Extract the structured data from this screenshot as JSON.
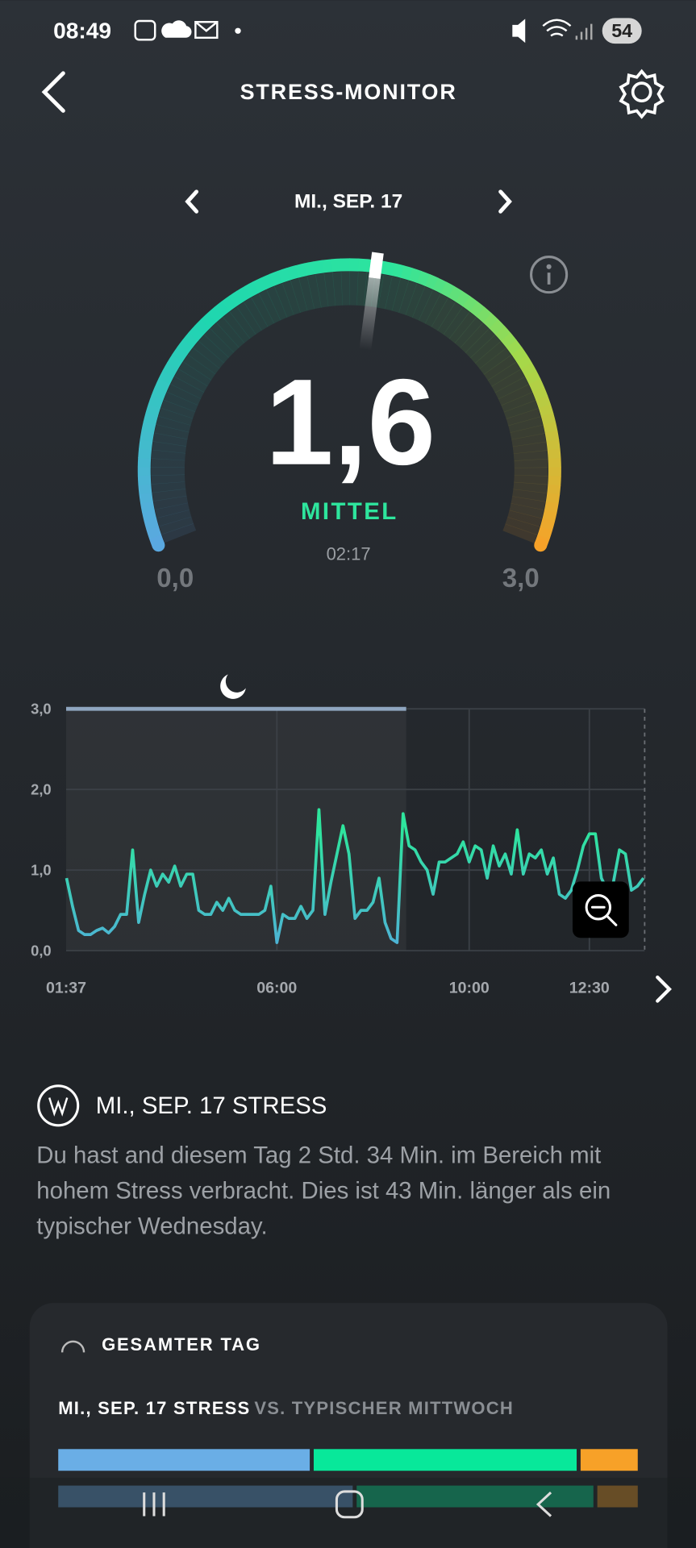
{
  "status_bar": {
    "time": "08:49",
    "battery": "54"
  },
  "header": {
    "title": "STRESS-MONITOR"
  },
  "date_nav": {
    "date": "MI., SEP. 17"
  },
  "gauge": {
    "value": {
      "value": 1.6,
      "label": "1,6"
    },
    "level": "MITTEL",
    "time": "02:17",
    "lim": [
      0,
      3
    ],
    "ticks": [
      {
        "value": 0,
        "label": "0,0"
      },
      {
        "value": 3,
        "label": "3,0"
      }
    ]
  },
  "chart_data": {
    "type": "line",
    "x": [
      1.625,
      1.75,
      1.875,
      2,
      2.125,
      2.25,
      2.375,
      2.5,
      2.625,
      2.75,
      2.875,
      3,
      3.125,
      3.25,
      3.375,
      3.5,
      3.625,
      3.75,
      3.875,
      4,
      4.125,
      4.25,
      4.375,
      4.5,
      4.625,
      4.75,
      4.875,
      5,
      5.125,
      5.25,
      5.375,
      5.5,
      5.625,
      5.75,
      5.875,
      6,
      6.125,
      6.25,
      6.375,
      6.5,
      6.625,
      6.75,
      6.875,
      7,
      7.125,
      7.25,
      7.375,
      7.5,
      7.625,
      7.75,
      7.875,
      8,
      8.125,
      8.25,
      8.375,
      8.5,
      8.625,
      8.75,
      8.875,
      9,
      9.125,
      9.25,
      9.375,
      9.5,
      9.625,
      9.75,
      9.875,
      10,
      10.125,
      10.25,
      10.375,
      10.5,
      10.625,
      10.75,
      10.875,
      11,
      11.125,
      11.25,
      11.375,
      11.5,
      11.625,
      11.75,
      11.875,
      12,
      12.125,
      12.25,
      12.375,
      12.5,
      12.625,
      12.75,
      12.875,
      13,
      13.125,
      13.25,
      13.375,
      13.5,
      13.625
    ],
    "values": [
      0.9,
      0.55,
      0.25,
      0.2,
      0.2,
      0.25,
      0.28,
      0.22,
      0.3,
      0.45,
      0.45,
      1.25,
      0.35,
      0.7,
      1.0,
      0.8,
      0.95,
      0.85,
      1.05,
      0.8,
      0.95,
      0.95,
      0.5,
      0.45,
      0.45,
      0.6,
      0.5,
      0.65,
      0.5,
      0.45,
      0.45,
      0.45,
      0.45,
      0.5,
      0.8,
      0.1,
      0.45,
      0.4,
      0.4,
      0.55,
      0.4,
      0.5,
      1.75,
      0.45,
      0.85,
      1.2,
      1.55,
      1.2,
      0.4,
      0.5,
      0.5,
      0.6,
      0.9,
      0.35,
      0.15,
      0.1,
      1.7,
      1.3,
      1.25,
      1.1,
      1.0,
      0.7,
      1.1,
      1.1,
      1.15,
      1.2,
      1.35,
      1.1,
      1.3,
      1.25,
      0.9,
      1.3,
      1.05,
      1.2,
      0.95,
      1.5,
      0.95,
      1.2,
      1.15,
      1.25,
      0.95,
      1.15,
      0.7,
      0.65,
      0.75,
      1.0,
      1.3,
      1.45,
      1.45,
      0.9,
      0.75,
      0.85,
      1.25,
      1.2,
      0.75,
      0.8,
      0.9
    ],
    "xlim": [
      1.617,
      13.65
    ],
    "xticks": [
      {
        "value": 1.617,
        "label": "01:37"
      },
      {
        "value": 6,
        "label": "06:00"
      },
      {
        "value": 10,
        "label": "10:00"
      },
      {
        "value": 12.5,
        "label": "12:30"
      }
    ],
    "ylim": [
      0,
      3
    ],
    "yticks": [
      {
        "value": 0,
        "label": "0,0"
      },
      {
        "value": 1,
        "label": "1,0"
      },
      {
        "value": 2,
        "label": "2,0"
      },
      {
        "value": 3,
        "label": "3,0"
      }
    ],
    "colors": [
      "#4fb0d8",
      "#2ee59d"
    ],
    "grid": true,
    "sleep_period": [
      1.617,
      8.69
    ]
  },
  "summary": {
    "title": "MI., SEP. 17 STRESS",
    "text": "Du hast and diesem Tag 2 Std. 34 Min. im Bereich mit hohem Stress verbracht. Dies ist 43 Min. länger als ein typischer Wednesday."
  },
  "card": {
    "title": "GESAMTER TAG",
    "subtitle": "MI., SEP. 17 STRESS",
    "comparison": "VS. TYPISCHER MITTWOCH",
    "colors": [
      "#6aaee6",
      "#08e89a",
      "#f7a128"
    ],
    "today": [
      44,
      46,
      10
    ],
    "typical": [
      51,
      41,
      7
    ]
  }
}
